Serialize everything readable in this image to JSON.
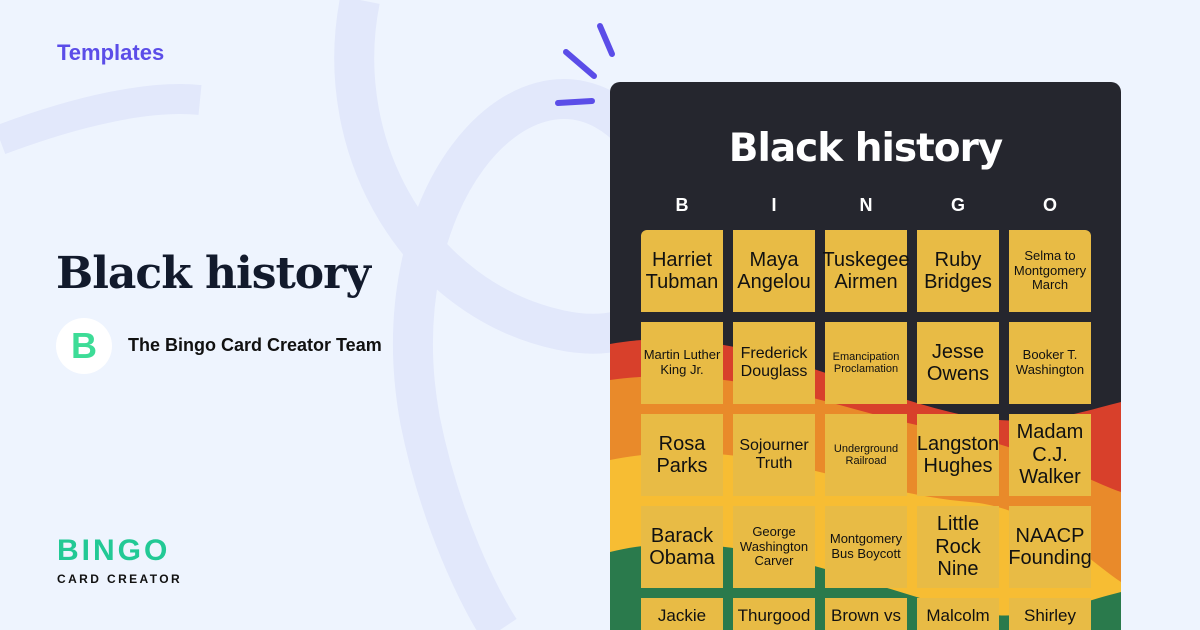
{
  "header": {
    "section": "Templates"
  },
  "template": {
    "title": "Black history",
    "author": "The Bingo Card Creator Team",
    "author_avatar_letter": "B"
  },
  "logo": {
    "main": "BINGO",
    "sub": "CARD CREATOR"
  },
  "card": {
    "title": "Black history",
    "letters": [
      "B",
      "I",
      "N",
      "G",
      "O"
    ],
    "cells": [
      [
        "Harriet Tubman",
        "Maya Angelou",
        "Tuskegee Airmen",
        "Ruby Bridges",
        "Selma to Montgomery March"
      ],
      [
        "Martin Luther King Jr.",
        "Frederick Douglass",
        "Emancipation Proclamation",
        "Jesse Owens",
        "Booker T. Washington"
      ],
      [
        "Rosa Parks",
        "Sojourner Truth",
        "Underground Railroad",
        "Langston Hughes",
        "Madam C.J. Walker"
      ],
      [
        "Barack Obama",
        "George Washington Carver",
        "Montgomery Bus Boycott",
        "Little Rock Nine",
        "NAACP Founding"
      ],
      [
        "Jackie",
        "Thurgood",
        "Brown vs",
        "Malcolm",
        "Shirley"
      ]
    ]
  },
  "colors": {
    "accent": "#5b4de8",
    "brand_green": "#22c995",
    "card_bg": "#25262e",
    "cell": "#e8bb45",
    "red": "#d8402b",
    "orange": "#e98a2a",
    "yellow": "#f7bd33",
    "green": "#2a7a4c"
  }
}
